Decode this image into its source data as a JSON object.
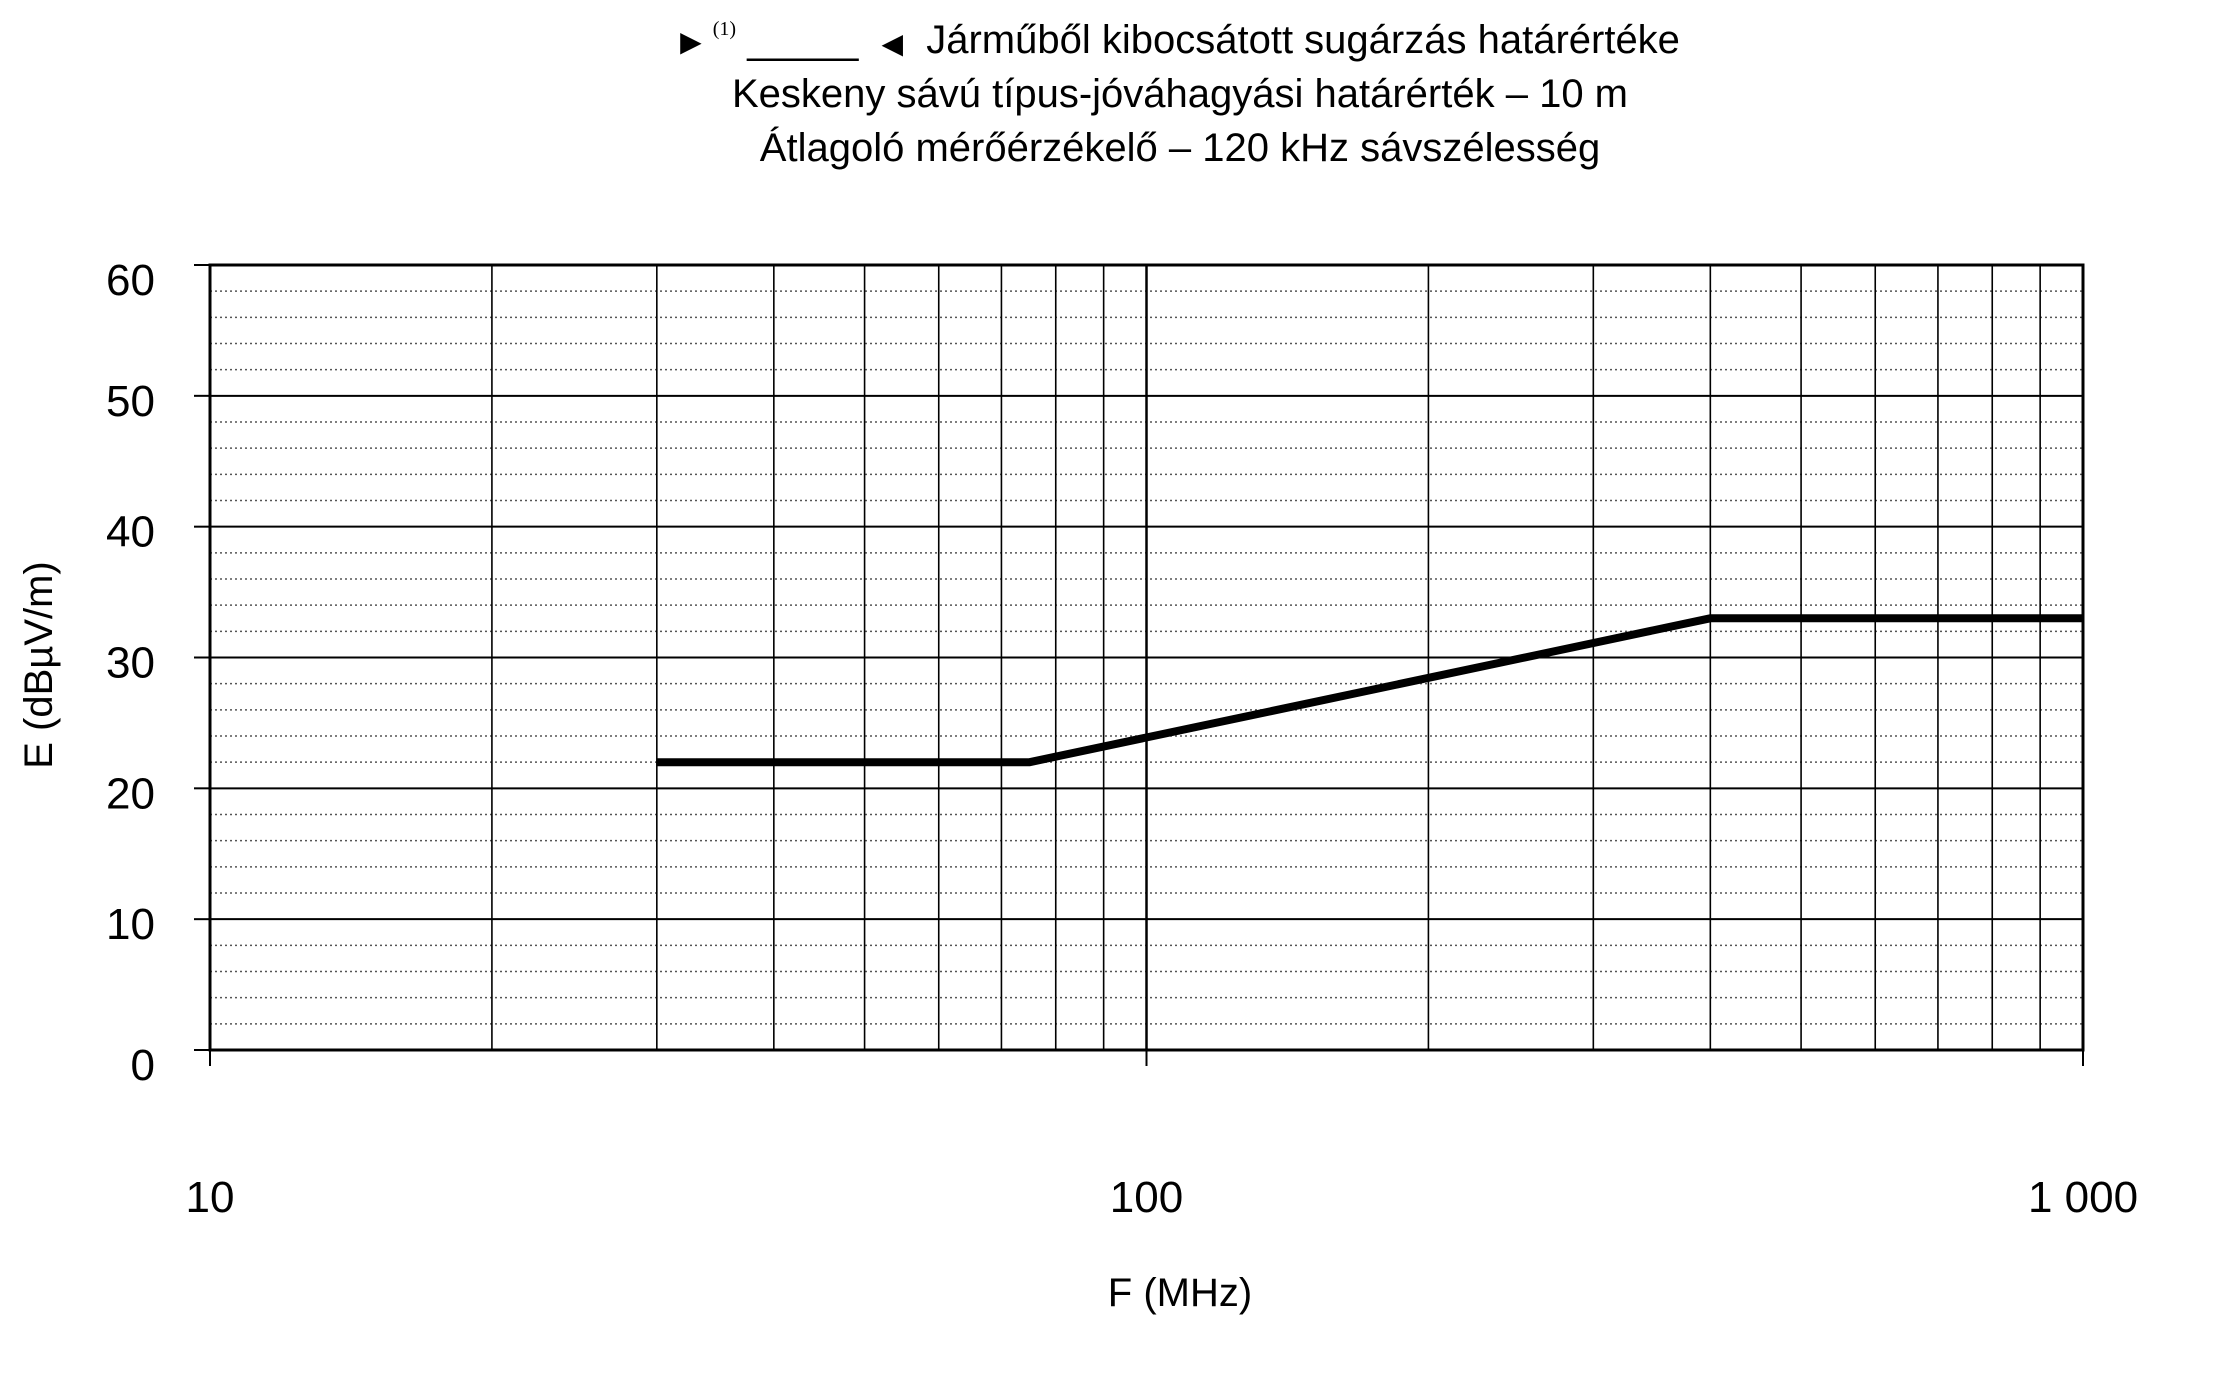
{
  "chart_data": {
    "type": "line",
    "title": {
      "prefix_marker": "▶",
      "footnote": "(1)",
      "placeholder": "_____",
      "suffix_marker": "◀",
      "line1": "Járműből kibocsátott sugárzás határértéke",
      "line2": "Keskeny sávú típus-jóváhagyási határérték – 10 m",
      "line3": "Átlagoló mérőérzékelő – 120 kHz sávszélesség"
    },
    "xlabel": "F (MHz)",
    "ylabel": "E (dBµV/m)",
    "xscale": "log",
    "xlim": [
      10,
      1000
    ],
    "ylim": [
      0,
      60
    ],
    "xticks": [
      {
        "value": 10,
        "label": "10"
      },
      {
        "value": 100,
        "label": "100"
      },
      {
        "value": 1000,
        "label": "1 000"
      }
    ],
    "yticks": [
      {
        "value": 0,
        "label": "0"
      },
      {
        "value": 10,
        "label": "10"
      },
      {
        "value": 20,
        "label": "20"
      },
      {
        "value": 30,
        "label": "30"
      },
      {
        "value": 40,
        "label": "40"
      },
      {
        "value": 50,
        "label": "50"
      },
      {
        "value": 60,
        "label": "60"
      }
    ],
    "grid": true,
    "series": [
      {
        "color": "#000000",
        "x": [
          30,
          75,
          400,
          1000
        ],
        "y": [
          22,
          22,
          33,
          33
        ]
      }
    ]
  }
}
